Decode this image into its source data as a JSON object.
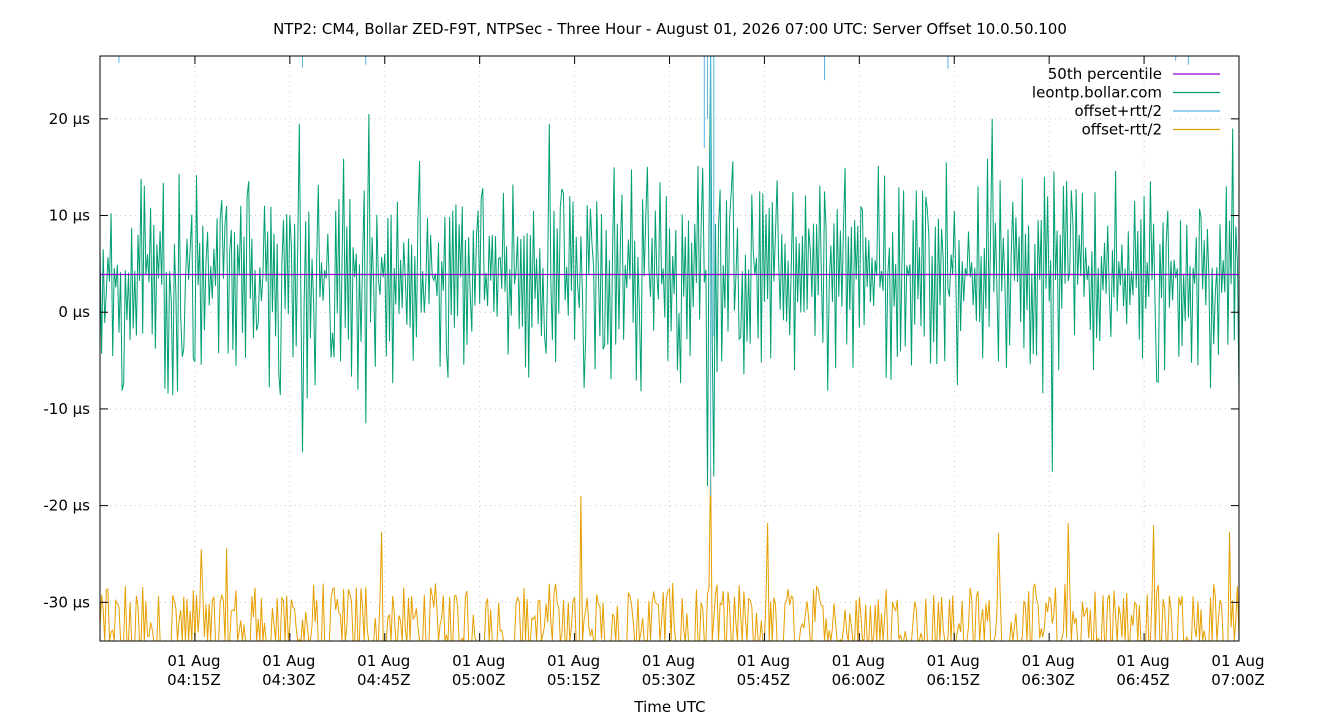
{
  "chart_data": {
    "type": "line",
    "title": "NTP2: CM4, Bollar ZED-F9T, NTPSec - Three Hour - August 01, 2026 07:00 UTC: Server Offset 10.0.50.100",
    "xlabel": "Time UTC",
    "ylabel": "",
    "grid": true,
    "legend_position": "top-right",
    "ylim": [
      -34,
      26.5
    ],
    "xlim": [
      "04:00Z",
      "07:00Z"
    ],
    "y_ticks": [
      {
        "value": 20,
        "label": "20 µs"
      },
      {
        "value": 10,
        "label": "10 µs"
      },
      {
        "value": 0,
        "label": "0 µs"
      },
      {
        "value": -10,
        "label": "-10 µs"
      },
      {
        "value": -20,
        "label": "-20 µs"
      },
      {
        "value": -30,
        "label": "-30 µs"
      }
    ],
    "x_ticks": [
      {
        "minutes": 15,
        "label_line1": "01 Aug",
        "label_line2": "04:15Z"
      },
      {
        "minutes": 30,
        "label_line1": "01 Aug",
        "label_line2": "04:30Z"
      },
      {
        "minutes": 45,
        "label_line1": "01 Aug",
        "label_line2": "04:45Z"
      },
      {
        "minutes": 60,
        "label_line1": "01 Aug",
        "label_line2": "05:00Z"
      },
      {
        "minutes": 75,
        "label_line1": "01 Aug",
        "label_line2": "05:15Z"
      },
      {
        "minutes": 90,
        "label_line1": "01 Aug",
        "label_line2": "05:30Z"
      },
      {
        "minutes": 105,
        "label_line1": "01 Aug",
        "label_line2": "05:45Z"
      },
      {
        "minutes": 120,
        "label_line1": "01 Aug",
        "label_line2": "06:00Z"
      },
      {
        "minutes": 135,
        "label_line1": "01 Aug",
        "label_line2": "06:15Z"
      },
      {
        "minutes": 150,
        "label_line1": "01 Aug",
        "label_line2": "06:30Z"
      },
      {
        "minutes": 165,
        "label_line1": "01 Aug",
        "label_line2": "06:45Z"
      },
      {
        "minutes": 180,
        "label_line1": "01 Aug",
        "label_line2": "07:00Z"
      }
    ],
    "series": [
      {
        "name": "50th percentile",
        "color": "#9400d3",
        "style": "constant",
        "value": 3.9
      },
      {
        "name": "leontp.bollar.com",
        "color": "#009e73",
        "style": "noisy-line",
        "x_minutes_step": 0.25,
        "typical_range": [
          -9,
          16
        ],
        "peaks": [
          {
            "minutes": 31.5,
            "value": 19.5
          },
          {
            "minutes": 42.5,
            "value": 20.5
          },
          {
            "minutes": 71,
            "value": 19.5
          },
          {
            "minutes": 141,
            "value": 20.0
          },
          {
            "minutes": 179,
            "value": 19.0
          }
        ],
        "troughs": [
          {
            "minutes": 32,
            "value": -14.5
          },
          {
            "minutes": 42,
            "value": -11.5
          },
          {
            "minutes": 96,
            "value": -18.0
          },
          {
            "minutes": 97,
            "value": -17.0
          },
          {
            "minutes": 150.5,
            "value": -16.5
          }
        ],
        "spike": {
          "minutes": 96.5,
          "value": 26.5
        }
      },
      {
        "name": "offset+rtt/2",
        "color": "#56b4e9",
        "style": "mostly-above-range",
        "visible_dips": [
          {
            "minutes": 3,
            "value": 25.8
          },
          {
            "minutes": 32,
            "value": 25.3
          },
          {
            "minutes": 42,
            "value": 25.6
          },
          {
            "minutes": 95.5,
            "value": 17.0
          },
          {
            "minutes": 96,
            "value": 20.0
          },
          {
            "minutes": 96.5,
            "value": -19.0
          },
          {
            "minutes": 97,
            "value": -2.5
          },
          {
            "minutes": 114.5,
            "value": 24.0
          },
          {
            "minutes": 134,
            "value": 25.2
          },
          {
            "minutes": 170,
            "value": 26.0
          },
          {
            "minutes": 172,
            "value": 25.6
          }
        ]
      },
      {
        "name": "offset-rtt/2",
        "color": "#e69f00",
        "style": "spiky-floor",
        "typical_range": [
          -34,
          -28
        ],
        "peaks": [
          {
            "minutes": 16,
            "value": -24.5
          },
          {
            "minutes": 20,
            "value": -24.4
          },
          {
            "minutes": 44.5,
            "value": -22.7
          },
          {
            "minutes": 76,
            "value": -19.0
          },
          {
            "minutes": 96.5,
            "value": -15.8
          },
          {
            "minutes": 105.5,
            "value": -21.8
          },
          {
            "minutes": 142,
            "value": -22.8
          },
          {
            "minutes": 153,
            "value": -21.8
          },
          {
            "minutes": 166.5,
            "value": -22.0
          },
          {
            "minutes": 178.5,
            "value": -22.7
          }
        ]
      }
    ]
  }
}
